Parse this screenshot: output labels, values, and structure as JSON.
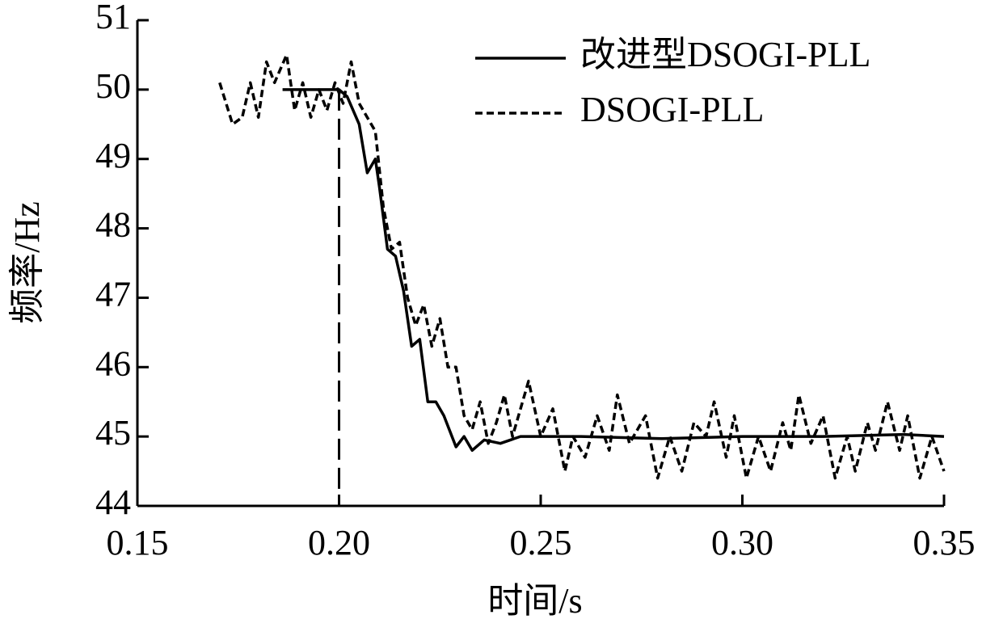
{
  "chart_data": {
    "type": "line",
    "xlabel": "时间/s",
    "ylabel": "频率/Hz",
    "xlim": [
      0.15,
      0.35
    ],
    "xticks": [
      0.15,
      {
        "value": 0.2,
        "label": "0.20"
      },
      0.25,
      {
        "value": 0.3,
        "label": "0.30"
      },
      0.35
    ],
    "ylim": [
      44,
      51
    ],
    "yticks": [
      44,
      45,
      46,
      47,
      48,
      49,
      50,
      51
    ],
    "vline": 0.2,
    "legend": "upper right",
    "series": [
      {
        "name": "改进型DSOGI-PLL",
        "color": "#000000",
        "dash": false,
        "x": [
          0.186,
          0.19,
          0.195,
          0.2,
          0.202,
          0.205,
          0.207,
          0.209,
          0.21,
          0.212,
          0.214,
          0.216,
          0.218,
          0.22,
          0.222,
          0.224,
          0.226,
          0.228,
          0.229,
          0.231,
          0.233,
          0.236,
          0.24,
          0.245,
          0.26,
          0.28,
          0.3,
          0.32,
          0.34,
          0.35
        ],
        "values": [
          50.0,
          50.0,
          50.0,
          50.0,
          49.9,
          49.5,
          48.8,
          49.0,
          48.6,
          47.7,
          47.6,
          47.1,
          46.3,
          46.4,
          45.5,
          45.5,
          45.3,
          45.0,
          44.85,
          45.0,
          44.8,
          44.95,
          44.9,
          45.0,
          45.0,
          44.97,
          45.0,
          45.0,
          45.03,
          45.0
        ]
      },
      {
        "name": "DSOGI-PLL",
        "color": "#000000",
        "dash": true,
        "x": [
          0.1704,
          0.1736,
          0.176,
          0.178,
          0.18,
          0.182,
          0.184,
          0.187,
          0.189,
          0.191,
          0.193,
          0.195,
          0.197,
          0.199,
          0.201,
          0.203,
          0.205,
          0.207,
          0.209,
          0.211,
          0.213,
          0.215,
          0.217,
          0.219,
          0.221,
          0.223,
          0.225,
          0.227,
          0.229,
          0.231,
          0.233,
          0.235,
          0.237,
          0.239,
          0.241,
          0.243,
          0.247,
          0.25,
          0.253,
          0.256,
          0.258,
          0.261,
          0.264,
          0.267,
          0.269,
          0.272,
          0.276,
          0.279,
          0.282,
          0.285,
          0.288,
          0.291,
          0.293,
          0.296,
          0.298,
          0.301,
          0.304,
          0.307,
          0.31,
          0.312,
          0.314,
          0.317,
          0.32,
          0.323,
          0.326,
          0.328,
          0.331,
          0.333,
          0.336,
          0.339,
          0.341,
          0.344,
          0.347,
          0.35
        ],
        "values": [
          50.1,
          49.5,
          49.6,
          50.1,
          49.6,
          50.4,
          50.1,
          50.5,
          49.7,
          50.1,
          49.6,
          50.0,
          49.7,
          50.1,
          49.8,
          50.4,
          49.8,
          49.6,
          49.4,
          48.3,
          47.7,
          47.8,
          47.0,
          46.6,
          46.9,
          46.3,
          46.7,
          46.0,
          46.0,
          45.3,
          45.1,
          45.5,
          44.9,
          45.2,
          45.6,
          45.0,
          45.8,
          45.0,
          45.4,
          44.5,
          45.0,
          44.7,
          45.3,
          44.8,
          45.6,
          44.9,
          45.3,
          44.4,
          45.0,
          44.5,
          45.2,
          45.0,
          45.5,
          44.7,
          45.3,
          44.4,
          45.0,
          44.5,
          45.2,
          44.8,
          45.6,
          44.9,
          45.3,
          44.4,
          45.0,
          44.5,
          45.2,
          44.8,
          45.5,
          44.8,
          45.3,
          44.4,
          45.0,
          44.5
        ]
      }
    ]
  }
}
